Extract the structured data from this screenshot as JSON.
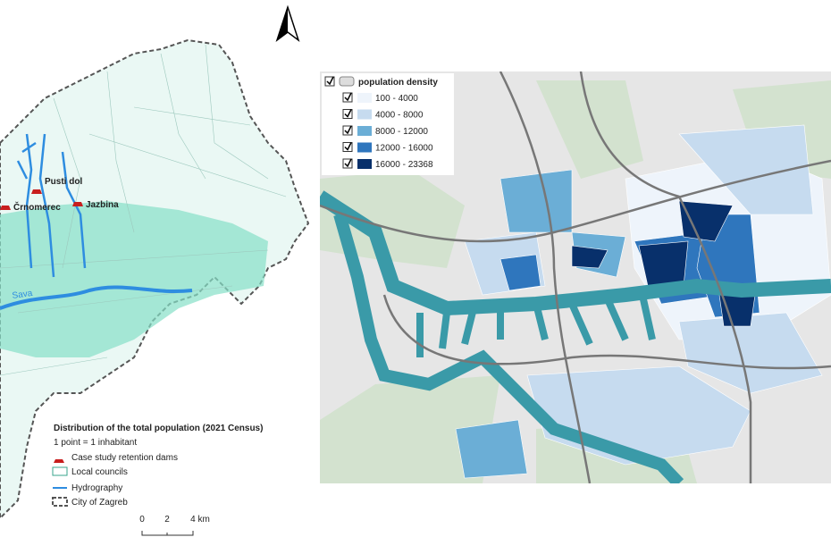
{
  "left_map": {
    "places": [
      "Pusti dol",
      "Črnomerec",
      "Jazbina"
    ],
    "river_label": "Sava",
    "legend": {
      "title": "Distribution of the total population (2021 Census)",
      "subtitle": "1 point = 1 inhabitant",
      "items": [
        "Case study retention dams",
        "Local councils",
        "Hydrography",
        "City of Zagreb"
      ]
    },
    "scale": [
      "0",
      "2",
      "4 km"
    ]
  },
  "right_map": {
    "legend": {
      "title": "population density",
      "classes": [
        {
          "label": "100 - 4000",
          "color": "#eef4fb"
        },
        {
          "label": "4000 - 8000",
          "color": "#c6dbef"
        },
        {
          "label": "8000 - 12000",
          "color": "#6baed6"
        },
        {
          "label": "12000 - 16000",
          "color": "#2f76bd"
        },
        {
          "label": "16000 - 23368",
          "color": "#08306b"
        }
      ]
    }
  }
}
